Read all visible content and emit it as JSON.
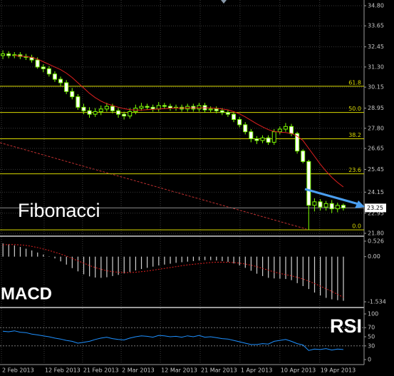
{
  "chart_data": [
    {
      "type": "candlestick",
      "xlim": [
        -0.5,
        60
      ],
      "ylim": [
        21.8,
        34.8
      ],
      "yticks": [
        {
          "value": 34.8,
          "label": "34.80"
        },
        {
          "value": 33.65,
          "label": "33.65"
        },
        {
          "value": 32.45,
          "label": "32.45"
        },
        {
          "value": 31.3,
          "label": "31.30"
        },
        {
          "value": 30.15,
          "label": "30.15"
        },
        {
          "value": 28.95,
          "label": "28.95"
        },
        {
          "value": 27.8,
          "label": "27.80"
        },
        {
          "value": 26.65,
          "label": "26.65"
        },
        {
          "value": 25.45,
          "label": "25.45"
        },
        {
          "value": 24.15,
          "label": "24.15"
        },
        {
          "value": 22.95,
          "label": "22.95"
        },
        {
          "value": 21.8,
          "label": "21.80"
        }
      ],
      "grid": true,
      "up_color": "#000000",
      "down_color": "#ffffff",
      "wick_color": "#7cfc00",
      "open": [
        31.95,
        32.05,
        31.95,
        32.0,
        31.9,
        31.85,
        31.7,
        31.3,
        31.2,
        30.9,
        30.6,
        30.4,
        29.9,
        29.6,
        29.0,
        28.8,
        28.6,
        28.75,
        28.9,
        29.05,
        28.8,
        28.6,
        28.5,
        28.75,
        28.95,
        29.05,
        29.0,
        28.9,
        29.1,
        29.05,
        28.95,
        29.0,
        28.9,
        29.05,
        28.9,
        29.1,
        28.85,
        28.9,
        28.8,
        28.7,
        28.6,
        28.3,
        28.0,
        27.6,
        27.2,
        27.1,
        27.25,
        27.0,
        27.6,
        27.75,
        27.9,
        27.5,
        26.5,
        25.9,
        23.4,
        23.6,
        23.3,
        23.5,
        23.2,
        23.4
      ],
      "high": [
        32.25,
        32.2,
        32.15,
        32.15,
        32.05,
        32.0,
        31.85,
        31.45,
        31.35,
        31.05,
        30.75,
        30.55,
        30.1,
        29.75,
        29.2,
        29.0,
        28.95,
        29.1,
        29.25,
        29.2,
        28.95,
        28.75,
        28.95,
        29.15,
        29.25,
        29.2,
        29.15,
        29.3,
        29.25,
        29.2,
        29.15,
        29.15,
        29.2,
        29.2,
        29.25,
        29.25,
        29.05,
        29.05,
        28.95,
        28.85,
        28.75,
        28.45,
        28.15,
        27.75,
        27.35,
        27.4,
        27.4,
        27.75,
        27.9,
        28.1,
        28.05,
        27.6,
        26.6,
        26.0,
        23.8,
        23.75,
        23.65,
        23.7,
        23.55,
        23.5
      ],
      "low": [
        31.75,
        31.8,
        31.8,
        31.75,
        31.7,
        31.55,
        31.2,
        31.0,
        30.75,
        30.45,
        30.2,
        29.75,
        29.45,
        28.85,
        28.6,
        28.4,
        28.45,
        28.55,
        28.75,
        28.65,
        28.4,
        28.3,
        28.35,
        28.6,
        28.8,
        28.85,
        28.75,
        28.75,
        28.9,
        28.8,
        28.8,
        28.75,
        28.75,
        28.75,
        28.75,
        28.7,
        28.7,
        28.65,
        28.55,
        28.45,
        28.15,
        27.85,
        27.45,
        27.0,
        26.9,
        26.95,
        26.85,
        26.85,
        27.45,
        27.6,
        27.35,
        26.35,
        25.8,
        22.0,
        23.05,
        23.1,
        23.1,
        22.95,
        23.0,
        23.1
      ],
      "close": [
        32.05,
        31.95,
        32.0,
        31.9,
        31.85,
        31.7,
        31.3,
        31.2,
        30.9,
        30.6,
        30.4,
        29.9,
        29.6,
        29.0,
        28.8,
        28.6,
        28.75,
        28.9,
        29.05,
        28.8,
        28.6,
        28.5,
        28.75,
        28.95,
        29.05,
        29.0,
        28.9,
        29.1,
        29.05,
        28.95,
        29.0,
        28.9,
        29.05,
        28.9,
        29.1,
        28.85,
        28.9,
        28.8,
        28.7,
        28.6,
        28.3,
        28.0,
        27.6,
        27.2,
        27.1,
        27.25,
        27.0,
        27.6,
        27.75,
        27.9,
        27.5,
        26.5,
        25.9,
        23.4,
        23.6,
        23.3,
        23.5,
        23.2,
        23.4,
        23.25
      ],
      "moving_average": {
        "color": "#e02020",
        "values": [
          null,
          null,
          31.95,
          31.93,
          31.9,
          31.85,
          31.75,
          31.6,
          31.45,
          31.3,
          31.15,
          30.95,
          30.7,
          30.4,
          30.1,
          29.8,
          29.55,
          29.35,
          29.2,
          29.1,
          29.0,
          28.92,
          28.86,
          28.84,
          28.84,
          28.86,
          28.88,
          28.9,
          28.92,
          28.94,
          28.95,
          28.95,
          28.96,
          28.96,
          28.97,
          28.97,
          28.96,
          28.94,
          28.9,
          28.85,
          28.75,
          28.62,
          28.45,
          28.25,
          28.05,
          27.88,
          27.72,
          27.62,
          27.58,
          27.56,
          27.5,
          27.35,
          27.1,
          26.65,
          26.2,
          25.75,
          25.35,
          25.0,
          24.7,
          24.45
        ]
      },
      "fib_color": "#d8d800",
      "fib_levels": [
        {
          "value": 30.2,
          "label": "61.8"
        },
        {
          "value": 28.7,
          "label": "50.0"
        },
        {
          "value": 27.2,
          "label": "38.2"
        },
        {
          "value": 25.2,
          "label": "23.6"
        },
        {
          "value": 22.0,
          "label": "0.0"
        }
      ],
      "last_price": 23.25,
      "annotation": "Fibonacci"
    },
    {
      "type": "bar",
      "xlim": [
        -0.5,
        60
      ],
      "ylim": [
        -1.534,
        0.526
      ],
      "yticks": [
        0.526,
        {
          "value": 0,
          "label": "0.00"
        },
        -1.534
      ],
      "color": "#d0d0d0",
      "values": [
        0.45,
        0.42,
        0.38,
        0.33,
        0.27,
        0.21,
        0.14,
        0.07,
        0.01,
        -0.06,
        -0.16,
        -0.27,
        -0.39,
        -0.5,
        -0.6,
        -0.67,
        -0.71,
        -0.72,
        -0.7,
        -0.66,
        -0.62,
        -0.57,
        -0.52,
        -0.47,
        -0.42,
        -0.38,
        -0.34,
        -0.3,
        -0.27,
        -0.24,
        -0.21,
        -0.19,
        -0.17,
        -0.15,
        -0.13,
        -0.12,
        -0.12,
        -0.13,
        -0.15,
        -0.18,
        -0.23,
        -0.3,
        -0.38,
        -0.48,
        -0.58,
        -0.66,
        -0.72,
        -0.74,
        -0.75,
        -0.76,
        -0.8,
        -0.9,
        -1.0,
        -1.1,
        -1.22,
        -1.32,
        -1.4,
        -1.45,
        -1.48,
        -1.5
      ],
      "signal": {
        "color": "#e02020",
        "values": [
          0.4,
          0.41,
          0.41,
          0.4,
          0.38,
          0.35,
          0.31,
          0.26,
          0.21,
          0.15,
          0.09,
          0.02,
          -0.06,
          -0.14,
          -0.22,
          -0.3,
          -0.37,
          -0.43,
          -0.48,
          -0.51,
          -0.53,
          -0.54,
          -0.54,
          -0.53,
          -0.51,
          -0.49,
          -0.46,
          -0.43,
          -0.4,
          -0.37,
          -0.34,
          -0.31,
          -0.28,
          -0.26,
          -0.24,
          -0.22,
          -0.2,
          -0.19,
          -0.19,
          -0.19,
          -0.2,
          -0.22,
          -0.25,
          -0.29,
          -0.34,
          -0.4,
          -0.46,
          -0.52,
          -0.57,
          -0.61,
          -0.65,
          -0.7,
          -0.76,
          -0.83,
          -0.91,
          -1.0,
          -1.09,
          -1.18,
          -1.28,
          -1.38
        ]
      },
      "annotation": "MACD"
    },
    {
      "type": "line",
      "xlim": [
        -0.5,
        60
      ],
      "ylim": [
        0,
        100
      ],
      "yticks": [
        100,
        70,
        50,
        30,
        0
      ],
      "levels": [
        70,
        30
      ],
      "color": "#1e90ff",
      "values": [
        62,
        61,
        63,
        60,
        59,
        56,
        54,
        52,
        50,
        47,
        45,
        42,
        40,
        36,
        38,
        40,
        44,
        47,
        49,
        46,
        44,
        43,
        47,
        50,
        52,
        51,
        49,
        53,
        52,
        50,
        51,
        49,
        52,
        50,
        53,
        49,
        50,
        48,
        46,
        45,
        42,
        39,
        36,
        33,
        33,
        35,
        34,
        40,
        42,
        44,
        40,
        35,
        32,
        20,
        23,
        22,
        24,
        21,
        23,
        22
      ],
      "xticks": [
        {
          "value": -0.25,
          "label": "2 Feb 2013"
        },
        {
          "value": 7.15,
          "label": "12 Feb 2013"
        },
        {
          "value": 13.8,
          "label": "21 Feb 2013"
        },
        {
          "value": 20.5,
          "label": "2 Mar 2013"
        },
        {
          "value": 27.3,
          "label": "12 Mar 2013"
        },
        {
          "value": 34.2,
          "label": "21 Mar 2013"
        },
        {
          "value": 41.1,
          "label": "1 Apr 2013"
        },
        {
          "value": 48.0,
          "label": "10 Apr 2013"
        },
        {
          "value": 54.9,
          "label": "19 Apr 2013"
        }
      ],
      "annotation": "RSI"
    }
  ]
}
